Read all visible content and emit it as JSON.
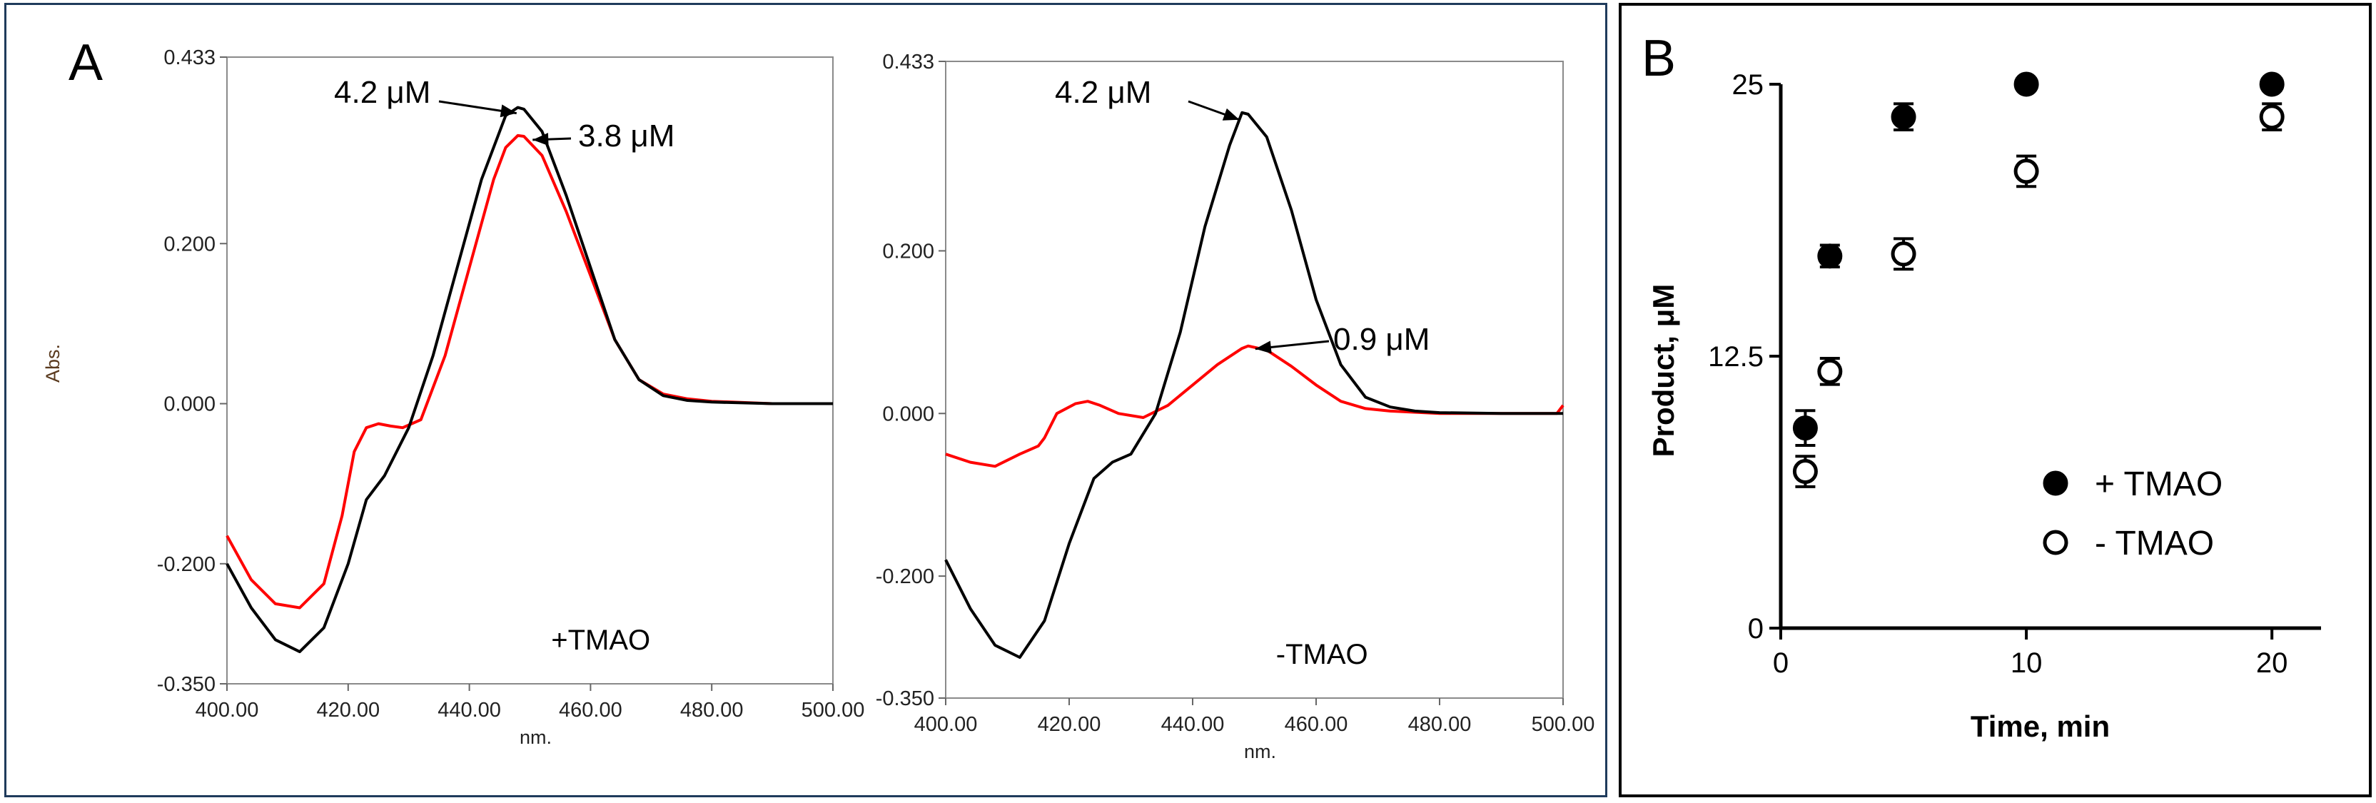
{
  "panel_labels": {
    "a": "A",
    "b": "B"
  },
  "chart_data": [
    {
      "type": "line",
      "panel": "A-left",
      "xlabel": "nm.",
      "ylabel": "Abs.",
      "xlim": [
        400,
        500
      ],
      "ylim": [
        -0.35,
        0.433
      ],
      "x_ticks": [
        "400.00",
        "420.00",
        "440.00",
        "460.00",
        "480.00",
        "500.00"
      ],
      "y_ticks": [
        "0.433",
        "0.200",
        "0.000",
        "-0.200",
        "-0.350"
      ],
      "condition_label": "+TMAO",
      "annotations": [
        {
          "text": "4.2 μM",
          "x": 448.5,
          "y": 0.37
        },
        {
          "text": "3.8 μM",
          "x": 449.5,
          "y": 0.335
        }
      ],
      "series": [
        {
          "color": "#000000",
          "x": [
            400,
            404,
            408,
            412,
            416,
            420,
            423,
            426,
            430,
            434,
            438,
            442,
            446,
            448,
            449,
            452,
            456,
            460,
            464,
            468,
            472,
            476,
            480,
            485,
            490,
            500
          ],
          "y": [
            -0.2,
            -0.255,
            -0.295,
            -0.31,
            -0.28,
            -0.2,
            -0.12,
            -0.09,
            -0.03,
            0.06,
            0.17,
            0.28,
            0.36,
            0.37,
            0.368,
            0.34,
            0.26,
            0.17,
            0.08,
            0.03,
            0.01,
            0.004,
            0.002,
            0.001,
            0.0,
            0.0
          ]
        },
        {
          "color": "#ff0000",
          "x": [
            400,
            404,
            408,
            412,
            416,
            419,
            421,
            423,
            425,
            427,
            429,
            432,
            436,
            440,
            444,
            446,
            448,
            449,
            452,
            456,
            460,
            464,
            468,
            472,
            476,
            480,
            490,
            500
          ],
          "y": [
            -0.165,
            -0.22,
            -0.25,
            -0.255,
            -0.225,
            -0.14,
            -0.06,
            -0.03,
            -0.025,
            -0.028,
            -0.03,
            -0.02,
            0.06,
            0.17,
            0.28,
            0.32,
            0.335,
            0.334,
            0.31,
            0.24,
            0.16,
            0.08,
            0.03,
            0.012,
            0.006,
            0.003,
            0.0,
            0.0
          ]
        }
      ]
    },
    {
      "type": "line",
      "panel": "A-right",
      "xlabel": "nm.",
      "xlim": [
        400,
        500
      ],
      "ylim": [
        -0.35,
        0.433
      ],
      "x_ticks": [
        "400.00",
        "420.00",
        "440.00",
        "460.00",
        "480.00",
        "500.00"
      ],
      "y_ticks": [
        "0.433",
        "0.200",
        "0.000",
        "-0.200",
        "-0.350"
      ],
      "condition_label": "-TMAO",
      "annotations": [
        {
          "text": "4.2 μM",
          "x": 448.5,
          "y": 0.37
        },
        {
          "text": "0.9 μM",
          "x": 449,
          "y": 0.083
        }
      ],
      "series": [
        {
          "color": "#000000",
          "x": [
            400,
            404,
            408,
            412,
            416,
            420,
            424,
            427,
            430,
            434,
            438,
            442,
            446,
            448,
            449,
            452,
            456,
            460,
            464,
            468,
            472,
            476,
            480,
            490,
            500
          ],
          "y": [
            -0.18,
            -0.24,
            -0.285,
            -0.3,
            -0.255,
            -0.16,
            -0.08,
            -0.06,
            -0.05,
            0.0,
            0.1,
            0.23,
            0.33,
            0.37,
            0.368,
            0.34,
            0.25,
            0.14,
            0.06,
            0.02,
            0.008,
            0.003,
            0.001,
            0.0,
            0.0
          ]
        },
        {
          "color": "#ff0000",
          "x": [
            400,
            404,
            408,
            412,
            415,
            416,
            418,
            421,
            423,
            425,
            428,
            432,
            436,
            440,
            444,
            448,
            449,
            452,
            456,
            460,
            464,
            468,
            472,
            480,
            490,
            499,
            500
          ],
          "y": [
            -0.05,
            -0.06,
            -0.065,
            -0.05,
            -0.04,
            -0.03,
            0.0,
            0.012,
            0.015,
            0.01,
            0.0,
            -0.005,
            0.01,
            0.035,
            0.06,
            0.08,
            0.083,
            0.078,
            0.058,
            0.035,
            0.015,
            0.006,
            0.003,
            0.0,
            0.0,
            0.0,
            0.01
          ]
        }
      ]
    },
    {
      "type": "scatter",
      "panel": "B",
      "xlabel": "Time, min",
      "ylabel": "Product, μM",
      "xlim": [
        0,
        22
      ],
      "ylim": [
        0,
        25
      ],
      "x_ticks": [
        "0",
        "10",
        "20"
      ],
      "y_ticks": [
        "0",
        "12.5",
        "25"
      ],
      "series": [
        {
          "name": "+ TMAO",
          "marker": "filled-circle",
          "x": [
            1,
            2,
            5,
            10,
            20
          ],
          "y": [
            9.2,
            17.1,
            23.5,
            25.0,
            25.0
          ],
          "err": [
            0.8,
            0.5,
            0.6,
            0.0,
            0.0
          ]
        },
        {
          "name": "-  TMAO",
          "marker": "open-circle",
          "x": [
            1,
            2,
            5,
            10,
            20
          ],
          "y": [
            7.2,
            11.8,
            17.2,
            21.0,
            23.5
          ],
          "err": [
            0.7,
            0.6,
            0.7,
            0.7,
            0.6
          ]
        }
      ],
      "legend": "bottom-right"
    }
  ]
}
